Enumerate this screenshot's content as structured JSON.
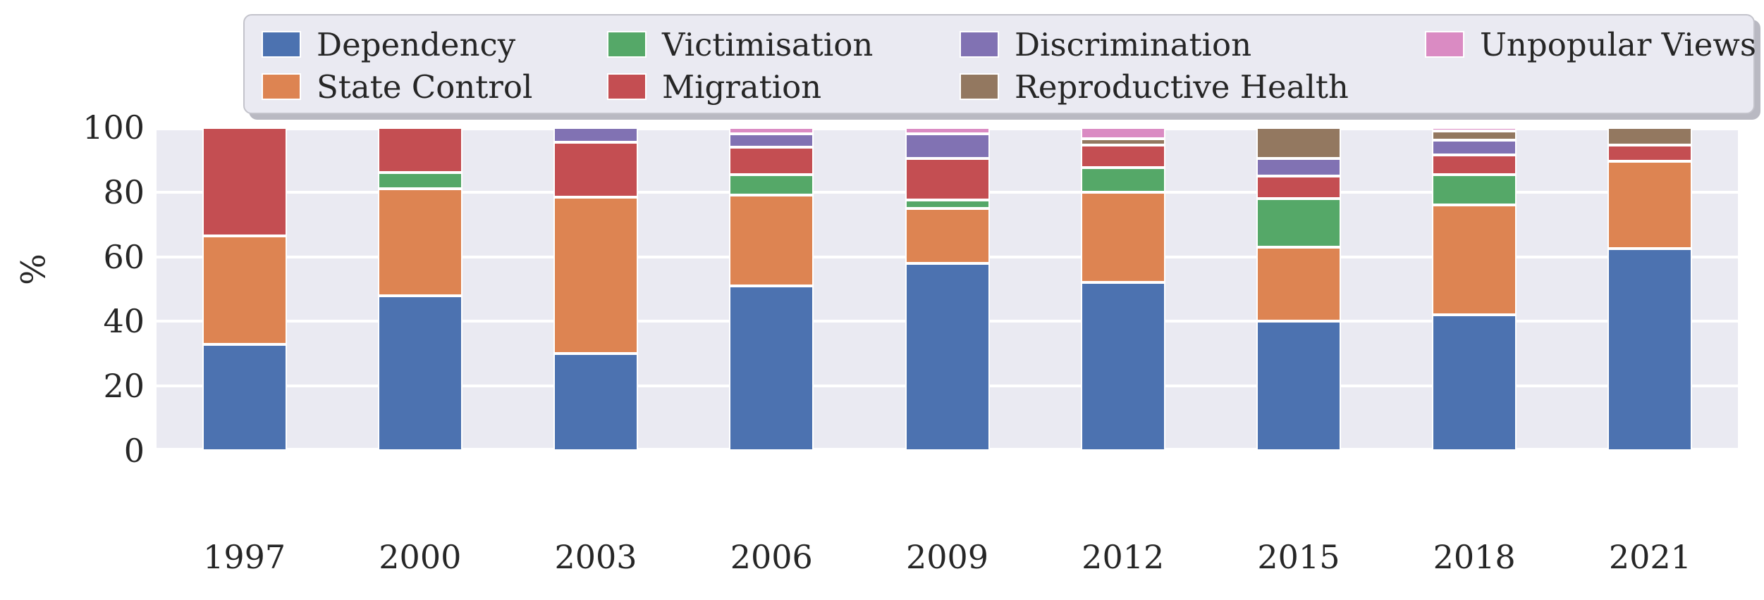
{
  "chart_data": {
    "type": "bar",
    "stacked": true,
    "normalized_to_100": true,
    "title": "",
    "xlabel": "",
    "ylabel": "%",
    "ylim": [
      0,
      100
    ],
    "yticks": [
      0,
      20,
      40,
      60,
      80,
      100
    ],
    "grid": true,
    "legend_position": "top",
    "plot_background": "#eaeaf2",
    "gridline_color": "#ffffff",
    "text_color": "#262626",
    "categories": [
      "1997",
      "2000",
      "2003",
      "2006",
      "2009",
      "2012",
      "2015",
      "2018",
      "2021"
    ],
    "series": [
      {
        "name": "Dependency",
        "color": "#4c72b0",
        "values": [
          33.0,
          48.0,
          30.0,
          51.0,
          58.0,
          52.0,
          40.0,
          42.0,
          62.5
        ]
      },
      {
        "name": "State Control",
        "color": "#dd8452",
        "values": [
          33.5,
          33.0,
          48.5,
          28.0,
          17.0,
          28.0,
          23.0,
          34.0,
          27.0
        ]
      },
      {
        "name": "Victimisation",
        "color": "#55a868",
        "values": [
          0,
          5.0,
          0,
          6.5,
          2.5,
          7.5,
          15.0,
          9.5,
          0
        ]
      },
      {
        "name": "Migration",
        "color": "#c44e52",
        "values": [
          33.5,
          14.0,
          17.0,
          8.5,
          13.0,
          7.0,
          7.0,
          6.0,
          5.0
        ]
      },
      {
        "name": "Discrimination",
        "color": "#8172b3",
        "values": [
          0,
          0,
          4.5,
          4.0,
          7.5,
          0,
          5.5,
          4.5,
          0
        ]
      },
      {
        "name": "Reproductive Health",
        "color": "#937860",
        "values": [
          0,
          0,
          0,
          0,
          0,
          2.0,
          9.5,
          3.0,
          5.5
        ]
      },
      {
        "name": "Unpopular Views",
        "color": "#da8bc3",
        "values": [
          0,
          0,
          0,
          2.0,
          2.0,
          3.5,
          0,
          1.0,
          0
        ]
      }
    ],
    "legend_entries": [
      "Dependency",
      "State Control",
      "Victimisation",
      "Migration",
      "Discrimination",
      "Reproductive Health",
      "Unpopular Views"
    ]
  }
}
